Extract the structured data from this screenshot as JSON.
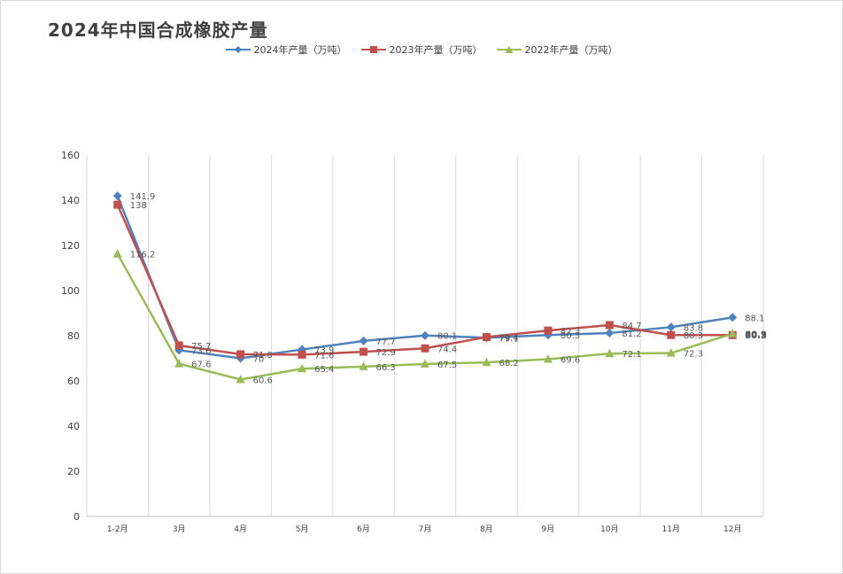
{
  "chart_data": {
    "type": "line",
    "title": "2024年中国合成橡胶产量",
    "categories": [
      "1-2月",
      "3月",
      "4月",
      "5月",
      "6月",
      "7月",
      "8月",
      "9月",
      "10月",
      "11月",
      "12月"
    ],
    "ylim": [
      0,
      160
    ],
    "yticks": [
      0,
      20,
      40,
      60,
      80,
      100,
      120,
      140,
      160
    ],
    "grid": "vertical",
    "legend_position": "top",
    "series": [
      {
        "name": "2024年产量（万吨）",
        "color": "#4f81bd",
        "marker": "diamond",
        "values": [
          141.9,
          73.6,
          70,
          73.9,
          77.7,
          80.1,
          79.1,
          80.3,
          81.2,
          83.8,
          88.1
        ]
      },
      {
        "name": "2023年产量（万吨）",
        "color": "#c0504d",
        "marker": "square",
        "values": [
          138,
          75.7,
          71.8,
          71.6,
          72.9,
          74.4,
          79.4,
          82.3,
          84.7,
          80.3,
          80.3
        ]
      },
      {
        "name": "2022年产量（万吨）",
        "color": "#9bbb59",
        "marker": "triangle",
        "values": [
          116.2,
          67.6,
          60.6,
          65.4,
          66.3,
          67.5,
          68.2,
          69.6,
          72.1,
          72.3,
          80.9
        ]
      }
    ]
  }
}
